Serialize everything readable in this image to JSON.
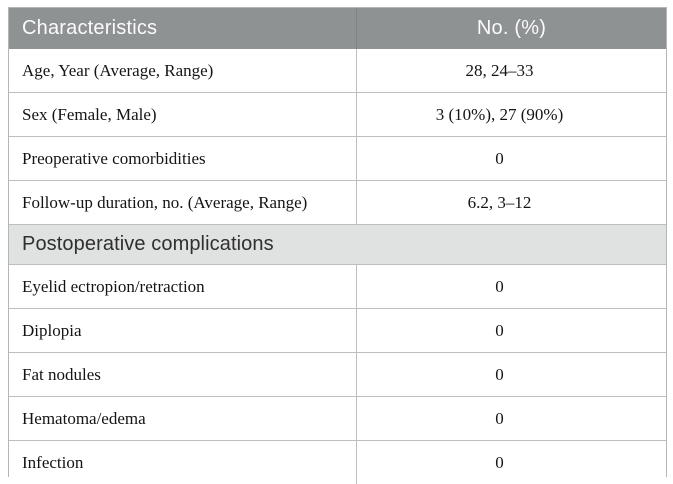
{
  "table": {
    "header": {
      "characteristics_label": "Characteristics",
      "value_label": "No. (%)"
    },
    "rows_top": [
      {
        "label": "Age, Year (Average, Range)",
        "value": "28, 24–33"
      },
      {
        "label": "Sex (Female, Male)",
        "value": "3 (10%), 27 (90%)"
      },
      {
        "label": "Preoperative comorbidities",
        "value": "0"
      },
      {
        "label": "Follow-up duration, no. (Average, Range)",
        "value": "6.2, 3–12"
      }
    ],
    "section": {
      "title": "Postoperative complications"
    },
    "rows_bottom": [
      {
        "label": "Eyelid ectropion/retraction",
        "value": "0"
      },
      {
        "label": "Diplopia",
        "value": "0"
      },
      {
        "label": "Fat nodules",
        "value": "0"
      },
      {
        "label": "Hematoma/edema",
        "value": "0"
      },
      {
        "label": "Infection",
        "value": "0"
      }
    ],
    "colors": {
      "header_bg": "#8e9293",
      "header_text": "#fbfbfb",
      "section_bg": "#e0e1e1",
      "border": "#bcbfc1",
      "body_text": "#141414"
    }
  }
}
